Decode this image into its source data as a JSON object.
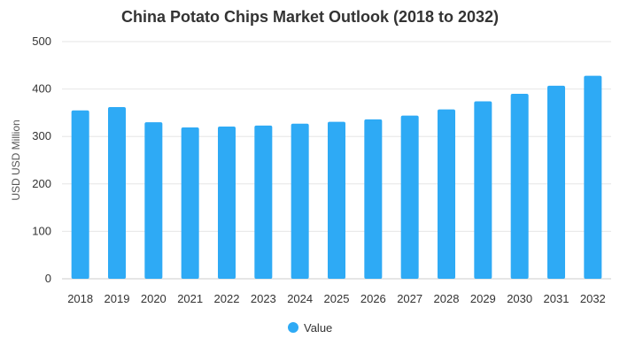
{
  "chart_data": {
    "type": "bar",
    "title": "China Potato Chips Market Outlook (2018 to 2032)",
    "xlabel": "",
    "ylabel": "USD USD Million",
    "ylim": [
      0,
      500
    ],
    "yticks": [
      0,
      100,
      200,
      300,
      400,
      500
    ],
    "categories": [
      "2018",
      "2019",
      "2020",
      "2021",
      "2022",
      "2023",
      "2024",
      "2025",
      "2026",
      "2027",
      "2028",
      "2029",
      "2030",
      "2031",
      "2032"
    ],
    "series": [
      {
        "name": "Value",
        "color": "#2eaaf5",
        "values": [
          355,
          362,
          330,
          319,
          321,
          323,
          327,
          331,
          336,
          344,
          357,
          374,
          390,
          407,
          428
        ]
      }
    ],
    "grid": true,
    "legend_position": "bottom-center"
  }
}
